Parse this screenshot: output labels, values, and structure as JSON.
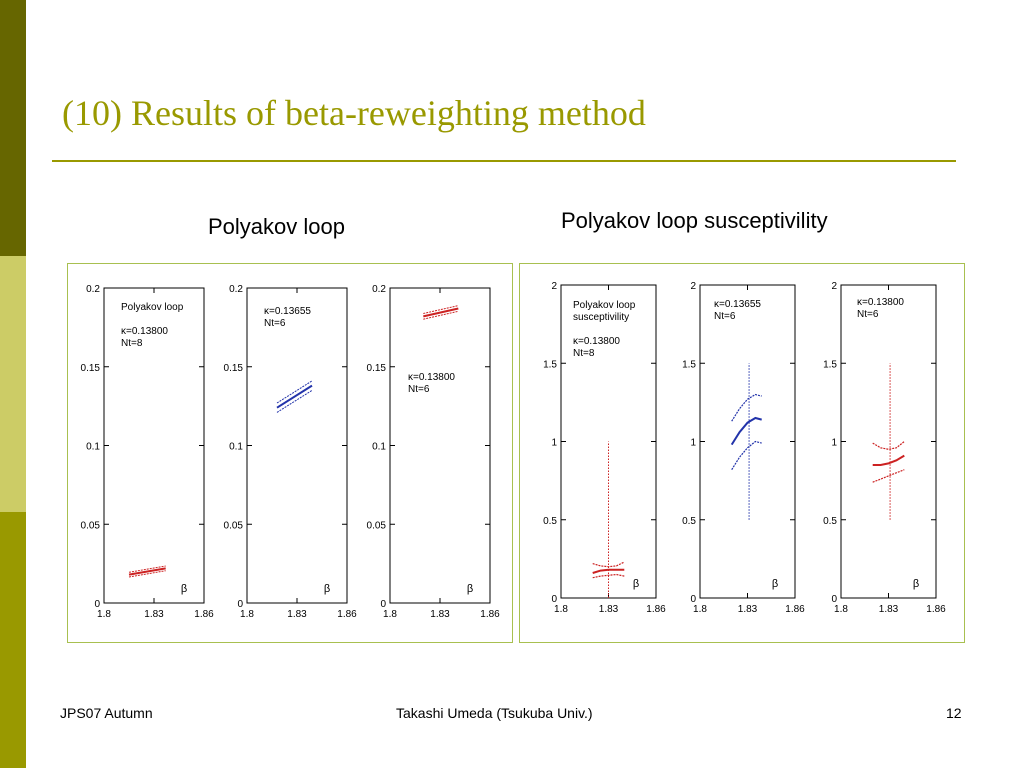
{
  "slide": {
    "title": "(10) Results of beta-reweighting method",
    "left_heading": "Polyakov loop",
    "right_heading": "Polyakov loop susceptivility",
    "footer": {
      "left": "JPS07 Autumn",
      "center": "Takashi Umeda (Tsukuba Univ.)",
      "page": "12"
    },
    "colors": {
      "band_dark": "#666600",
      "band_light": "#cccc66",
      "band_mid": "#999900",
      "title": "#999900",
      "frame": "#a8c050",
      "red": "#cc2222",
      "blue": "#2233aa"
    }
  },
  "chart_data": [
    {
      "type": "line",
      "group": "Polyakov loop",
      "annotation": [
        "Polyakov loop",
        "κ=0.13800",
        "Nt=8"
      ],
      "xlabel": "β",
      "xlim": [
        1.8,
        1.86
      ],
      "ylim": [
        0,
        0.2
      ],
      "xticks": [
        "1.8",
        "1.83",
        "1.86"
      ],
      "yticks": [
        "0",
        "0.05",
        "0.1",
        "0.15",
        "0.2"
      ],
      "series": [
        {
          "color": "#cc2222",
          "x": [
            1.815,
            1.837
          ],
          "y": [
            0.018,
            0.022
          ],
          "band": 0.0015
        }
      ]
    },
    {
      "type": "line",
      "group": "Polyakov loop",
      "annotation": [
        "κ=0.13655",
        "Nt=6"
      ],
      "xlabel": "β",
      "xlim": [
        1.8,
        1.86
      ],
      "ylim": [
        0,
        0.2
      ],
      "xticks": [
        "1.8",
        "1.83",
        "1.86"
      ],
      "yticks": [
        "0",
        "0.05",
        "0.1",
        "0.15",
        "0.2"
      ],
      "series": [
        {
          "color": "#2233aa",
          "x": [
            1.818,
            1.839
          ],
          "y": [
            0.124,
            0.138
          ],
          "band": 0.003
        }
      ]
    },
    {
      "type": "line",
      "group": "Polyakov loop",
      "annotation": [
        "κ=0.13800",
        "Nt=6"
      ],
      "xlabel": "β",
      "xlim": [
        1.8,
        1.86
      ],
      "ylim": [
        0,
        0.2
      ],
      "xticks": [
        "1.8",
        "1.83",
        "1.86"
      ],
      "yticks": [
        "0",
        "0.05",
        "0.1",
        "0.15",
        "0.2"
      ],
      "series": [
        {
          "color": "#cc2222",
          "x": [
            1.82,
            1.841
          ],
          "y": [
            0.182,
            0.187
          ],
          "band": 0.0018
        }
      ]
    },
    {
      "type": "line",
      "group": "Polyakov loop susceptivility",
      "annotation": [
        "Polyakov loop",
        "susceptivility",
        "κ=0.13800",
        "Nt=8"
      ],
      "xlabel": "β",
      "xlim": [
        1.8,
        1.86
      ],
      "ylim": [
        0,
        2
      ],
      "xticks": [
        "1.8",
        "1.83",
        "1.86"
      ],
      "yticks": [
        "0",
        "0.5",
        "1",
        "1.5",
        "2"
      ],
      "peak_marker": {
        "x": 1.83,
        "y": [
          0,
          1.0
        ],
        "color": "#cc2222"
      },
      "series": [
        {
          "role": "center",
          "color": "#cc2222",
          "x": [
            1.82,
            1.825,
            1.83,
            1.835,
            1.84
          ],
          "y": [
            0.16,
            0.175,
            0.18,
            0.18,
            0.18
          ]
        },
        {
          "role": "upper",
          "color": "#cc2222",
          "x": [
            1.82,
            1.825,
            1.83,
            1.835,
            1.84
          ],
          "y": [
            0.22,
            0.205,
            0.2,
            0.205,
            0.23
          ]
        },
        {
          "role": "lower",
          "color": "#cc2222",
          "x": [
            1.82,
            1.825,
            1.83,
            1.835,
            1.84
          ],
          "y": [
            0.13,
            0.14,
            0.145,
            0.15,
            0.14
          ]
        }
      ]
    },
    {
      "type": "line",
      "group": "Polyakov loop susceptivility",
      "annotation": [
        "κ=0.13655",
        "Nt=6"
      ],
      "xlabel": "β",
      "xlim": [
        1.8,
        1.86
      ],
      "ylim": [
        0,
        2
      ],
      "xticks": [
        "1.8",
        "1.83",
        "1.86"
      ],
      "yticks": [
        "0",
        "0.5",
        "1",
        "1.5",
        "2"
      ],
      "peak_marker": {
        "x": 1.831,
        "y": [
          0.5,
          1.5
        ],
        "color": "#2233aa"
      },
      "series": [
        {
          "role": "center",
          "color": "#2233aa",
          "x": [
            1.82,
            1.825,
            1.83,
            1.835,
            1.839
          ],
          "y": [
            0.98,
            1.06,
            1.12,
            1.15,
            1.14
          ]
        },
        {
          "role": "upper",
          "color": "#2233aa",
          "x": [
            1.82,
            1.825,
            1.83,
            1.835,
            1.839
          ],
          "y": [
            1.13,
            1.21,
            1.27,
            1.3,
            1.29
          ]
        },
        {
          "role": "lower",
          "color": "#2233aa",
          "x": [
            1.82,
            1.825,
            1.83,
            1.835,
            1.839
          ],
          "y": [
            0.82,
            0.9,
            0.96,
            1.0,
            0.99
          ]
        }
      ]
    },
    {
      "type": "line",
      "group": "Polyakov loop susceptivility",
      "annotation": [
        "κ=0.13800",
        "Nt=6"
      ],
      "xlabel": "β",
      "xlim": [
        1.8,
        1.86
      ],
      "ylim": [
        0,
        2
      ],
      "xticks": [
        "1.8",
        "1.83",
        "1.86"
      ],
      "yticks": [
        "0",
        "0.5",
        "1",
        "1.5",
        "2"
      ],
      "peak_marker": {
        "x": 1.831,
        "y": [
          0.5,
          1.5
        ],
        "color": "#cc2222"
      },
      "series": [
        {
          "role": "center",
          "color": "#cc2222",
          "x": [
            1.82,
            1.825,
            1.83,
            1.835,
            1.84
          ],
          "y": [
            0.85,
            0.85,
            0.86,
            0.88,
            0.91
          ]
        },
        {
          "role": "upper",
          "color": "#cc2222",
          "x": [
            1.82,
            1.825,
            1.83,
            1.835,
            1.84
          ],
          "y": [
            0.99,
            0.96,
            0.95,
            0.96,
            1.0
          ]
        },
        {
          "role": "lower",
          "color": "#cc2222",
          "x": [
            1.82,
            1.825,
            1.83,
            1.835,
            1.84
          ],
          "y": [
            0.74,
            0.76,
            0.78,
            0.8,
            0.82
          ]
        }
      ]
    }
  ]
}
